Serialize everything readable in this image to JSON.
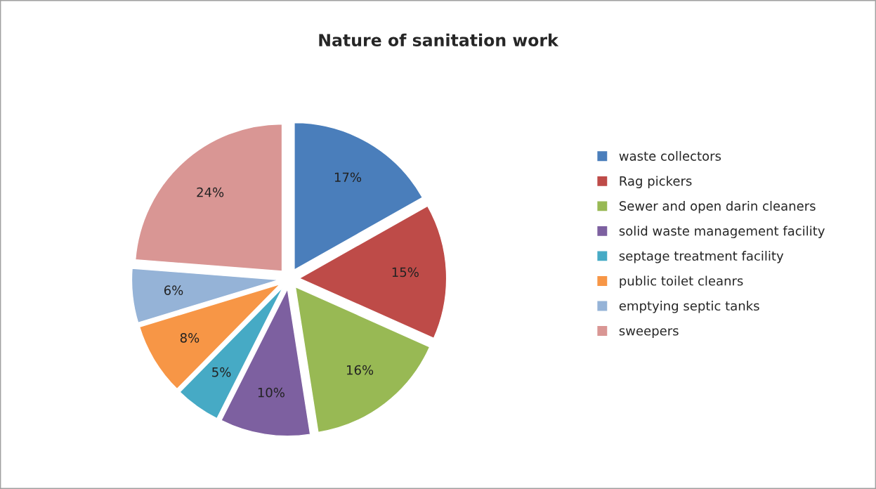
{
  "chart_data": {
    "type": "pie",
    "title": "Nature of sanitation work",
    "categories": [
      "waste collectors",
      "Rag pickers",
      "Sewer and open darin cleaners",
      "solid waste management facility",
      "septage treatment facility",
      "public toilet cleanrs",
      "emptying septic tanks",
      "sweepers"
    ],
    "values": [
      17,
      15,
      16,
      10,
      5,
      8,
      6,
      24
    ],
    "value_labels": [
      "17%",
      "15%",
      "16%",
      "10%",
      "5%",
      "8%",
      "6%",
      "24%"
    ],
    "colors": [
      "#4a7ebb",
      "#be4b48",
      "#98b954",
      "#7d60a0",
      "#46aac5",
      "#f79646",
      "#95b3d7",
      "#d99694"
    ],
    "legend": "right"
  }
}
